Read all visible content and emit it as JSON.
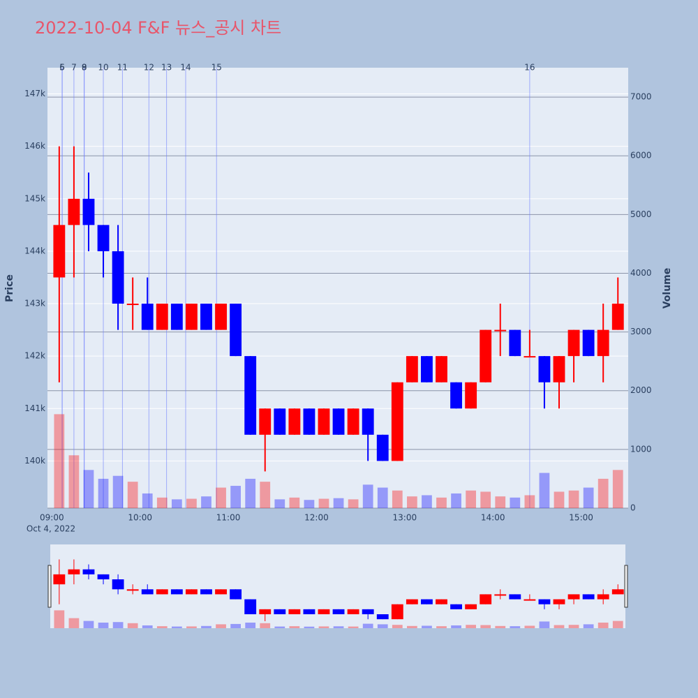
{
  "chart_data": {
    "type": "candlestick",
    "title": "2022-10-04 F&F 뉴스_공시 차트",
    "x_date_label": "Oct 4, 2022",
    "y_title": "Price",
    "y2_title": "Volume",
    "x": [
      "09:00",
      "09:10",
      "09:20",
      "09:30",
      "09:40",
      "09:50",
      "10:00",
      "10:10",
      "10:20",
      "10:30",
      "10:40",
      "10:50",
      "11:00",
      "11:10",
      "11:20",
      "11:30",
      "11:40",
      "11:50",
      "12:00",
      "12:10",
      "12:20",
      "12:30",
      "12:40",
      "12:50",
      "13:00",
      "13:10",
      "13:20",
      "13:30",
      "13:40",
      "13:50",
      "14:00",
      "14:10",
      "14:20",
      "14:30",
      "14:40",
      "14:50",
      "15:00",
      "15:10",
      "15:20"
    ],
    "open": [
      143500,
      144500,
      145000,
      144500,
      144000,
      143000,
      143000,
      142500,
      143000,
      142500,
      143000,
      142500,
      143000,
      142000,
      140500,
      141000,
      140500,
      141000,
      140500,
      141000,
      140500,
      141000,
      140500,
      140000,
      141500,
      142000,
      141500,
      141500,
      141000,
      141500,
      142500,
      142500,
      142000,
      142000,
      141500,
      142000,
      142500,
      142000,
      142500
    ],
    "high": [
      146000,
      146000,
      145500,
      144500,
      144500,
      143500,
      143500,
      143000,
      143000,
      143000,
      143000,
      143000,
      143000,
      142000,
      141000,
      141000,
      141000,
      141000,
      141000,
      141000,
      141000,
      141000,
      140500,
      141500,
      142000,
      142000,
      142000,
      141500,
      141500,
      142500,
      143000,
      142500,
      142500,
      142000,
      142000,
      142500,
      142500,
      143000,
      143500
    ],
    "low": [
      141500,
      143500,
      144000,
      143500,
      142500,
      142500,
      142500,
      142500,
      142500,
      142500,
      142500,
      142500,
      142000,
      140500,
      139800,
      140500,
      140500,
      140500,
      140500,
      140500,
      140500,
      140000,
      140000,
      140000,
      141500,
      141500,
      141500,
      141000,
      141000,
      141500,
      142000,
      142000,
      142000,
      141000,
      141000,
      141500,
      142000,
      141500,
      142500
    ],
    "close": [
      144500,
      145000,
      144500,
      144000,
      143000,
      143000,
      142500,
      143000,
      142500,
      143000,
      142500,
      143000,
      142000,
      140500,
      141000,
      140500,
      141000,
      140500,
      141000,
      140500,
      141000,
      140500,
      140000,
      141500,
      142000,
      141500,
      142000,
      141000,
      141500,
      142500,
      142500,
      142000,
      142000,
      141500,
      142000,
      142500,
      142000,
      142500,
      143000
    ],
    "volume": [
      1600,
      900,
      650,
      500,
      550,
      450,
      250,
      180,
      150,
      160,
      200,
      350,
      380,
      500,
      450,
      150,
      180,
      140,
      160,
      170,
      150,
      400,
      350,
      300,
      200,
      220,
      180,
      250,
      300,
      280,
      200,
      180,
      220,
      600,
      280,
      300,
      350,
      500,
      650
    ],
    "up_color": "#ff0000",
    "down_color": "#0000ff",
    "ylim": [
      139100,
      147500
    ],
    "yticks": [
      {
        "value": 140000,
        "label": "140k"
      },
      {
        "value": 141000,
        "label": "141k"
      },
      {
        "value": 142000,
        "label": "142k"
      },
      {
        "value": 143000,
        "label": "143k"
      },
      {
        "value": 144000,
        "label": "144k"
      },
      {
        "value": 145000,
        "label": "145k"
      },
      {
        "value": 146000,
        "label": "146k"
      },
      {
        "value": 147000,
        "label": "147k"
      }
    ],
    "y2lim": [
      0,
      7500
    ],
    "y2ticks": [
      0,
      1000,
      2000,
      3000,
      4000,
      5000,
      6000,
      7000
    ],
    "xlim": [
      "08:57",
      "15:32"
    ],
    "xticks": [
      "09:00",
      "10:00",
      "11:00",
      "12:00",
      "13:00",
      "14:00",
      "15:00"
    ],
    "news": [
      {
        "label": "5",
        "x": "09:07"
      },
      {
        "label": "6",
        "x": "09:07"
      },
      {
        "label": "7",
        "x": "09:15"
      },
      {
        "label": "8",
        "x": "09:22"
      },
      {
        "label": "9",
        "x": "09:22"
      },
      {
        "label": "10",
        "x": "09:35"
      },
      {
        "label": "11",
        "x": "09:48"
      },
      {
        "label": "12",
        "x": "10:06"
      },
      {
        "label": "13",
        "x": "10:18"
      },
      {
        "label": "14",
        "x": "10:31"
      },
      {
        "label": "15",
        "x": "10:52"
      },
      {
        "label": "16",
        "x": "14:25"
      }
    ]
  }
}
